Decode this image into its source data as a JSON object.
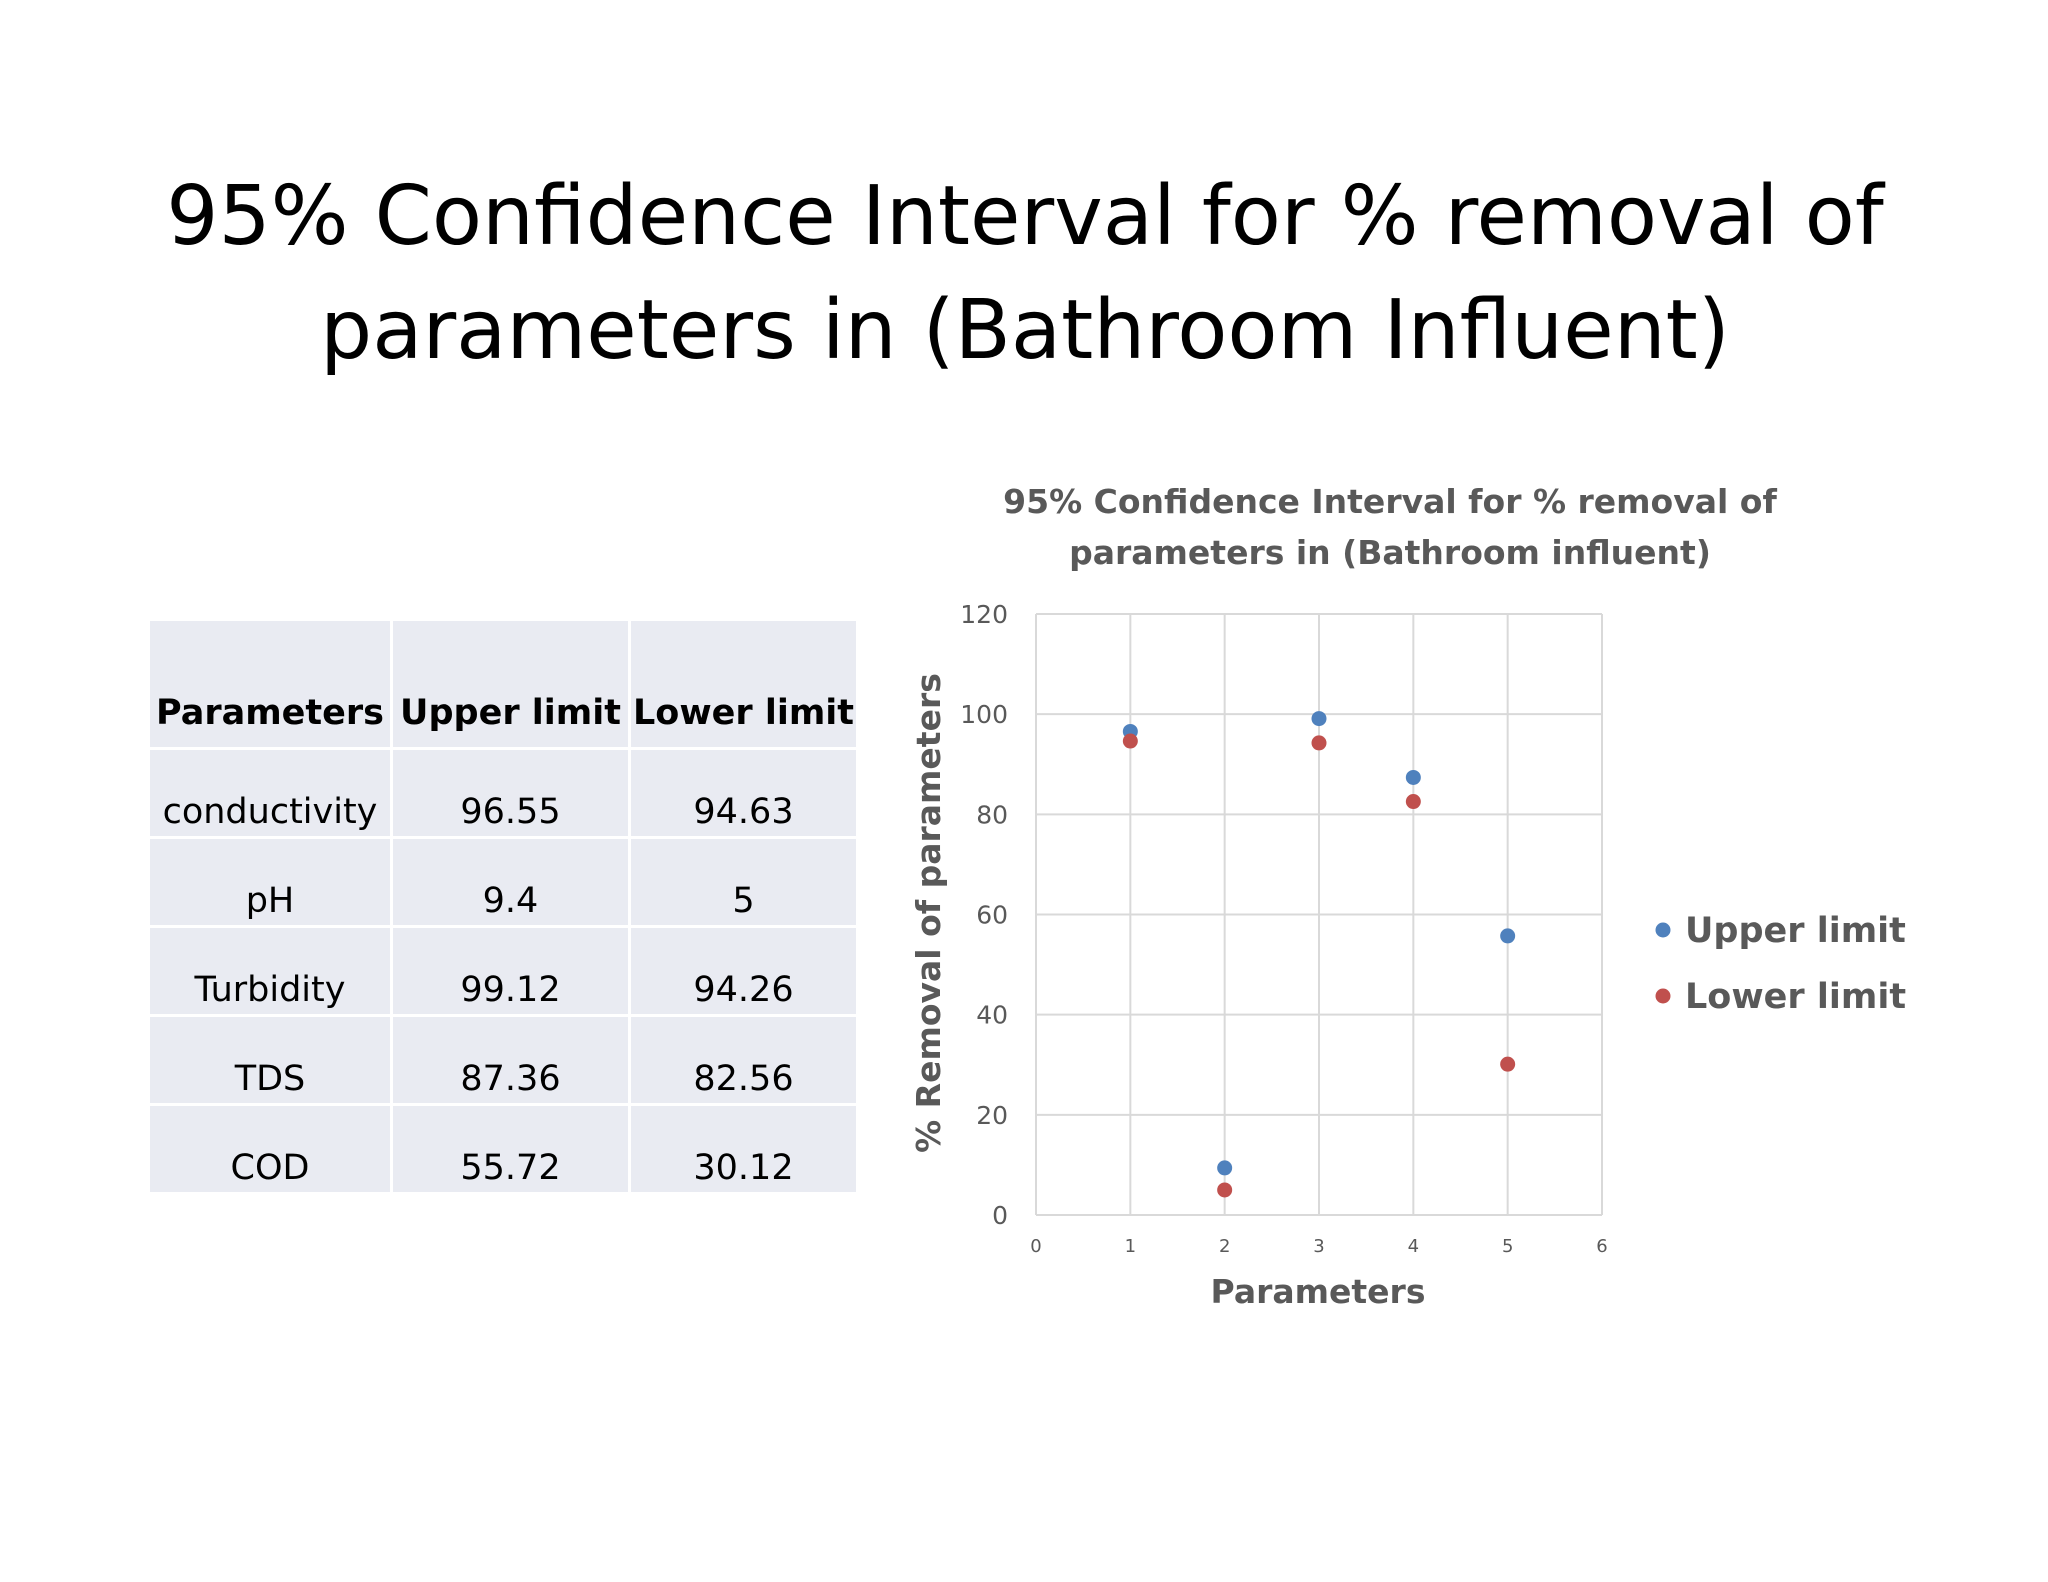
{
  "slide": {
    "title_line1": "95% Confidence Interval for % removal of",
    "title_line2": "parameters in (Bathroom Influent)"
  },
  "table": {
    "headers": [
      "Parameters",
      "Upper limit",
      "Lower limit"
    ],
    "rows": [
      [
        "conductivity",
        "96.55",
        "94.63"
      ],
      [
        "pH",
        "9.4",
        "5"
      ],
      [
        "Turbidity",
        "99.12",
        "94.26"
      ],
      [
        "TDS",
        "87.36",
        "82.56"
      ],
      [
        "COD",
        "55.72",
        "30.12"
      ]
    ]
  },
  "chart_data": {
    "type": "scatter",
    "title": [
      "95% Confidence Interval for % removal of",
      "parameters in (Bathroom influent)"
    ],
    "xlabel": "Parameters",
    "ylabel": "% Removal of parameters",
    "xlim": [
      0,
      6
    ],
    "ylim": [
      0,
      120
    ],
    "xticks": [
      0,
      1,
      2,
      3,
      4,
      5,
      6
    ],
    "yticks": [
      0,
      20,
      40,
      60,
      80,
      100,
      120
    ],
    "grid": true,
    "legend_position": "right",
    "series": [
      {
        "name": "Upper limit",
        "color": "#4f81bd",
        "x": [
          1,
          2,
          3,
          4,
          5
        ],
        "y": [
          96.55,
          9.4,
          99.12,
          87.36,
          55.72
        ]
      },
      {
        "name": "Lower limit",
        "color": "#c0504d",
        "x": [
          1,
          2,
          3,
          4,
          5
        ],
        "y": [
          94.63,
          5,
          94.26,
          82.56,
          30.12
        ]
      }
    ]
  }
}
